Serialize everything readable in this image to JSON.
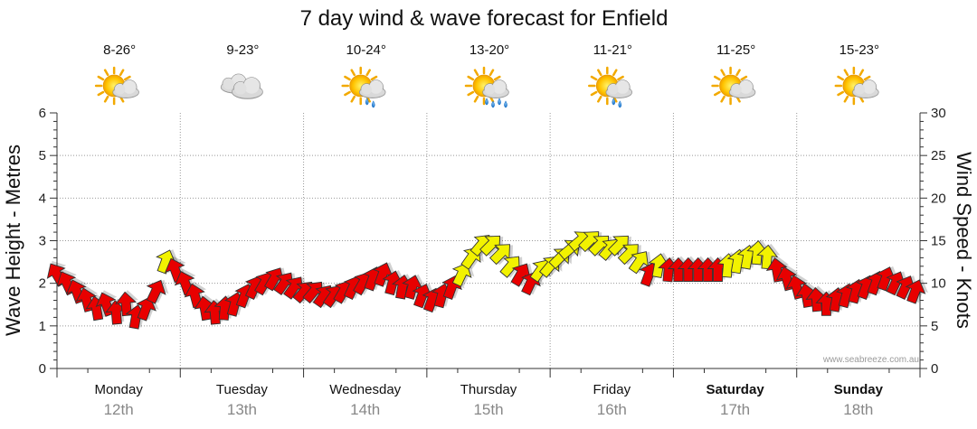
{
  "title": "7 day wind & wave forecast for Enfield",
  "credit": "www.seabreeze.com.au",
  "days": [
    {
      "name": "Monday",
      "date": "12th",
      "temp": "8-26°",
      "weather": "partly-cloudy-icon",
      "bold": false
    },
    {
      "name": "Tuesday",
      "date": "13th",
      "temp": "9-23°",
      "weather": "cloudy-icon",
      "bold": false
    },
    {
      "name": "Wednesday",
      "date": "14th",
      "temp": "10-24°",
      "weather": "showers-icon",
      "bold": false
    },
    {
      "name": "Thursday",
      "date": "15th",
      "temp": "13-20°",
      "weather": "rain-icon",
      "bold": false
    },
    {
      "name": "Friday",
      "date": "16th",
      "temp": "11-21°",
      "weather": "showers-icon",
      "bold": false
    },
    {
      "name": "Saturday",
      "date": "17th",
      "temp": "11-25°",
      "weather": "partly-cloudy-icon",
      "bold": true
    },
    {
      "name": "Sunday",
      "date": "18th",
      "temp": "15-23°",
      "weather": "partly-cloudy-icon",
      "bold": true
    }
  ],
  "chart_data": {
    "type": "line",
    "title": "7 day wind & wave forecast for Enfield",
    "ylabel_left": "Wave Height - Metres",
    "ylabel_right": "Wind Speed - Knots",
    "ylim_left": [
      0,
      6
    ],
    "ylim_right": [
      0,
      30
    ],
    "yticks_left": [
      "0",
      "1",
      "2",
      "3",
      "4",
      "5",
      "6"
    ],
    "yticks_right": [
      "0",
      "5",
      "10",
      "15",
      "20",
      "25",
      "30"
    ],
    "x_categories": [
      "Monday 12th",
      "Tuesday 13th",
      "Wednesday 14th",
      "Thursday 15th",
      "Friday 16th",
      "Saturday 17th",
      "Sunday 18th"
    ],
    "x_days_range": [
      0,
      7
    ],
    "grid": true,
    "colors": {
      "strong": "#e80000",
      "light": "#f2f200",
      "outline": "#333333",
      "grid": "#999999"
    },
    "series": [
      {
        "name": "Wind Speed",
        "axis": "right",
        "values": [
          {
            "x": 0.0,
            "y": 11.0,
            "dir": 150,
            "c": "strong"
          },
          {
            "x": 0.08,
            "y": 10.0,
            "dir": 155,
            "c": "strong"
          },
          {
            "x": 0.16,
            "y": 9.0,
            "dir": 160,
            "c": "strong"
          },
          {
            "x": 0.24,
            "y": 8.0,
            "dir": 165,
            "c": "strong"
          },
          {
            "x": 0.32,
            "y": 7.0,
            "dir": 170,
            "c": "strong"
          },
          {
            "x": 0.4,
            "y": 7.5,
            "dir": 160,
            "c": "strong"
          },
          {
            "x": 0.48,
            "y": 6.5,
            "dir": 175,
            "c": "strong"
          },
          {
            "x": 0.56,
            "y": 7.5,
            "dir": 175,
            "c": "strong"
          },
          {
            "x": 0.64,
            "y": 6.0,
            "dir": 190,
            "c": "strong"
          },
          {
            "x": 0.72,
            "y": 7.0,
            "dir": 200,
            "c": "strong"
          },
          {
            "x": 0.8,
            "y": 9.0,
            "dir": 205,
            "c": "strong"
          },
          {
            "x": 0.88,
            "y": 12.5,
            "dir": 200,
            "c": "light"
          },
          {
            "x": 0.96,
            "y": 11.5,
            "dir": 160,
            "c": "strong"
          },
          {
            "x": 1.04,
            "y": 10.0,
            "dir": 160,
            "c": "strong"
          },
          {
            "x": 1.12,
            "y": 8.5,
            "dir": 165,
            "c": "strong"
          },
          {
            "x": 1.2,
            "y": 7.0,
            "dir": 170,
            "c": "strong"
          },
          {
            "x": 1.28,
            "y": 6.5,
            "dir": 175,
            "c": "strong"
          },
          {
            "x": 1.36,
            "y": 7.0,
            "dir": 185,
            "c": "strong"
          },
          {
            "x": 1.44,
            "y": 7.5,
            "dir": 195,
            "c": "strong"
          },
          {
            "x": 1.52,
            "y": 8.5,
            "dir": 200,
            "c": "strong"
          },
          {
            "x": 1.6,
            "y": 9.5,
            "dir": 205,
            "c": "strong"
          },
          {
            "x": 1.68,
            "y": 10.0,
            "dir": 210,
            "c": "strong"
          },
          {
            "x": 1.76,
            "y": 10.5,
            "dir": 210,
            "c": "strong"
          },
          {
            "x": 1.84,
            "y": 10.0,
            "dir": 215,
            "c": "strong"
          },
          {
            "x": 1.92,
            "y": 9.5,
            "dir": 215,
            "c": "strong"
          },
          {
            "x": 2.0,
            "y": 9.0,
            "dir": 220,
            "c": "strong"
          },
          {
            "x": 2.08,
            "y": 9.0,
            "dir": 220,
            "c": "strong"
          },
          {
            "x": 2.16,
            "y": 8.5,
            "dir": 215,
            "c": "strong"
          },
          {
            "x": 2.24,
            "y": 8.5,
            "dir": 215,
            "c": "strong"
          },
          {
            "x": 2.32,
            "y": 9.0,
            "dir": 210,
            "c": "strong"
          },
          {
            "x": 2.4,
            "y": 9.5,
            "dir": 205,
            "c": "strong"
          },
          {
            "x": 2.48,
            "y": 10.0,
            "dir": 210,
            "c": "strong"
          },
          {
            "x": 2.56,
            "y": 10.5,
            "dir": 200,
            "c": "strong"
          },
          {
            "x": 2.64,
            "y": 11.0,
            "dir": 200,
            "c": "strong"
          },
          {
            "x": 2.72,
            "y": 10.0,
            "dir": 195,
            "c": "strong"
          },
          {
            "x": 2.8,
            "y": 9.5,
            "dir": 190,
            "c": "strong"
          },
          {
            "x": 2.88,
            "y": 9.5,
            "dir": 195,
            "c": "strong"
          },
          {
            "x": 2.96,
            "y": 8.5,
            "dir": 200,
            "c": "strong"
          },
          {
            "x": 3.04,
            "y": 8.0,
            "dir": 200,
            "c": "strong"
          },
          {
            "x": 3.12,
            "y": 8.5,
            "dir": 195,
            "c": "strong"
          },
          {
            "x": 3.2,
            "y": 9.5,
            "dir": 200,
            "c": "strong"
          },
          {
            "x": 3.28,
            "y": 11.0,
            "dir": 205,
            "c": "light"
          },
          {
            "x": 3.36,
            "y": 13.0,
            "dir": 215,
            "c": "light"
          },
          {
            "x": 3.44,
            "y": 14.5,
            "dir": 220,
            "c": "light"
          },
          {
            "x": 3.52,
            "y": 14.5,
            "dir": 225,
            "c": "light"
          },
          {
            "x": 3.6,
            "y": 13.5,
            "dir": 225,
            "c": "light"
          },
          {
            "x": 3.68,
            "y": 12.0,
            "dir": 220,
            "c": "light"
          },
          {
            "x": 3.76,
            "y": 11.0,
            "dir": 210,
            "c": "strong"
          },
          {
            "x": 3.84,
            "y": 10.0,
            "dir": 205,
            "c": "strong"
          },
          {
            "x": 3.92,
            "y": 11.5,
            "dir": 215,
            "c": "light"
          },
          {
            "x": 4.0,
            "y": 12.0,
            "dir": 220,
            "c": "light"
          },
          {
            "x": 4.08,
            "y": 13.0,
            "dir": 225,
            "c": "light"
          },
          {
            "x": 4.16,
            "y": 14.0,
            "dir": 230,
            "c": "light"
          },
          {
            "x": 4.24,
            "y": 15.0,
            "dir": 230,
            "c": "light"
          },
          {
            "x": 4.32,
            "y": 15.0,
            "dir": 225,
            "c": "light"
          },
          {
            "x": 4.4,
            "y": 14.5,
            "dir": 225,
            "c": "light"
          },
          {
            "x": 4.48,
            "y": 14.0,
            "dir": 220,
            "c": "light"
          },
          {
            "x": 4.56,
            "y": 14.5,
            "dir": 225,
            "c": "light"
          },
          {
            "x": 4.64,
            "y": 13.5,
            "dir": 225,
            "c": "light"
          },
          {
            "x": 4.72,
            "y": 12.5,
            "dir": 215,
            "c": "light"
          },
          {
            "x": 4.8,
            "y": 11.0,
            "dir": 200,
            "c": "strong"
          },
          {
            "x": 4.88,
            "y": 12.0,
            "dir": 190,
            "c": "light"
          },
          {
            "x": 4.96,
            "y": 11.5,
            "dir": 185,
            "c": "strong"
          },
          {
            "x": 5.04,
            "y": 11.5,
            "dir": 180,
            "c": "strong"
          },
          {
            "x": 5.12,
            "y": 11.5,
            "dir": 180,
            "c": "strong"
          },
          {
            "x": 5.2,
            "y": 11.5,
            "dir": 180,
            "c": "strong"
          },
          {
            "x": 5.28,
            "y": 11.5,
            "dir": 180,
            "c": "strong"
          },
          {
            "x": 5.36,
            "y": 11.5,
            "dir": 180,
            "c": "strong"
          },
          {
            "x": 5.44,
            "y": 12.0,
            "dir": 185,
            "c": "light"
          },
          {
            "x": 5.52,
            "y": 12.5,
            "dir": 190,
            "c": "light"
          },
          {
            "x": 5.6,
            "y": 13.0,
            "dir": 190,
            "c": "light"
          },
          {
            "x": 5.68,
            "y": 13.5,
            "dir": 185,
            "c": "light"
          },
          {
            "x": 5.76,
            "y": 13.0,
            "dir": 185,
            "c": "light"
          },
          {
            "x": 5.84,
            "y": 11.5,
            "dir": 170,
            "c": "strong"
          },
          {
            "x": 5.92,
            "y": 10.5,
            "dir": 165,
            "c": "strong"
          },
          {
            "x": 6.0,
            "y": 9.5,
            "dir": 165,
            "c": "strong"
          },
          {
            "x": 6.08,
            "y": 8.5,
            "dir": 170,
            "c": "strong"
          },
          {
            "x": 6.16,
            "y": 8.0,
            "dir": 175,
            "c": "strong"
          },
          {
            "x": 6.24,
            "y": 7.5,
            "dir": 180,
            "c": "strong"
          },
          {
            "x": 6.32,
            "y": 8.0,
            "dir": 190,
            "c": "strong"
          },
          {
            "x": 6.4,
            "y": 8.5,
            "dir": 195,
            "c": "strong"
          },
          {
            "x": 6.48,
            "y": 9.0,
            "dir": 195,
            "c": "strong"
          },
          {
            "x": 6.56,
            "y": 9.5,
            "dir": 200,
            "c": "strong"
          },
          {
            "x": 6.64,
            "y": 10.0,
            "dir": 200,
            "c": "strong"
          },
          {
            "x": 6.72,
            "y": 10.5,
            "dir": 200,
            "c": "strong"
          },
          {
            "x": 6.8,
            "y": 10.0,
            "dir": 205,
            "c": "strong"
          },
          {
            "x": 6.88,
            "y": 9.5,
            "dir": 205,
            "c": "strong"
          },
          {
            "x": 6.96,
            "y": 9.0,
            "dir": 200,
            "c": "strong"
          }
        ]
      }
    ]
  }
}
